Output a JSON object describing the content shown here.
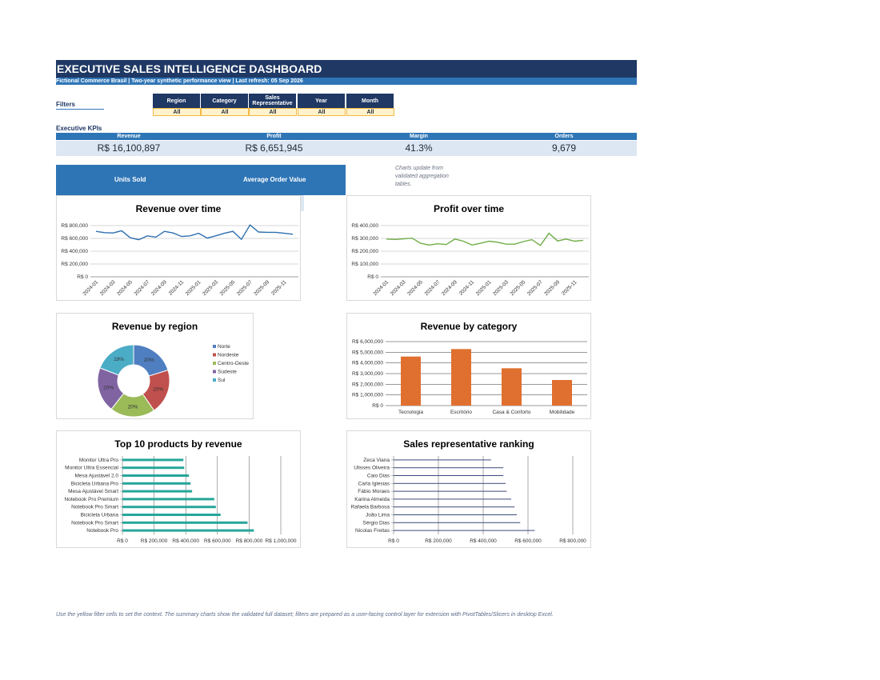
{
  "header": {
    "title": "EXECUTIVE SALES INTELLIGENCE DASHBOARD",
    "subtitle": "Fictional Commerce Brasil | Two-year synthetic performance view | Last refresh: 05 Sep 2026"
  },
  "filters": {
    "label": "Filters",
    "items": [
      {
        "label": "Region",
        "value": "All"
      },
      {
        "label": "Category",
        "value": "All"
      },
      {
        "label": "Sales Representative",
        "value": "All"
      },
      {
        "label": "Year",
        "value": "All"
      },
      {
        "label": "Month",
        "value": "All"
      }
    ]
  },
  "kpis": {
    "label": "Executive KPIs",
    "items": [
      {
        "label": "Revenue",
        "value": "R$ 16,100,897"
      },
      {
        "label": "Profit",
        "value": "R$ 6,651,945"
      },
      {
        "label": "Margin",
        "value": "41.3%"
      },
      {
        "label": "Orders",
        "value": "9,679"
      }
    ],
    "units_sold_label": "Units Sold",
    "avg_order_label": "Average Order Value"
  },
  "note": "Charts update from validated aggregation tables.",
  "footer": "Use the yellow filter cells to set the context. The summary charts show the validated full dataset; filters are prepared as a user-facing control layer for extension with PivotTables/Slicers in desktop Excel.",
  "colors": {
    "navy": "#1f3864",
    "blue": "#2e75b6",
    "line_blue": "#2e6fb0",
    "line_green": "#70ad47",
    "bar_orange": "#e0702f",
    "bar_teal": "#26a69a",
    "rep_navy": "#3b4a7a"
  },
  "chart_data": [
    {
      "type": "line",
      "title": "Revenue over time",
      "x": [
        "2024-01",
        "2024-02",
        "2024-03",
        "2024-04",
        "2024-05",
        "2024-06",
        "2024-07",
        "2024-08",
        "2024-09",
        "2024-10",
        "2024-11",
        "2024-12",
        "2025-01",
        "2025-02",
        "2025-03",
        "2025-04",
        "2025-05",
        "2025-06",
        "2025-07",
        "2025-08",
        "2025-09",
        "2025-10",
        "2025-11",
        "2025-12"
      ],
      "x_tick_labels": [
        "2024-01",
        "2024-03",
        "2024-05",
        "2024-07",
        "2024-09",
        "2024-11",
        "2025-01",
        "2025-03",
        "2025-05",
        "2025-07",
        "2025-09",
        "2025-11"
      ],
      "values": [
        710000,
        690000,
        685000,
        720000,
        610000,
        580000,
        640000,
        620000,
        710000,
        685000,
        630000,
        640000,
        680000,
        605000,
        640000,
        680000,
        710000,
        585000,
        810000,
        700000,
        695000,
        695000,
        680000,
        665000
      ],
      "ylim": [
        0,
        800000
      ],
      "y_ticks": [
        "R$ 0",
        "R$ 200,000",
        "R$ 400,000",
        "R$ 600,000",
        "R$ 800,000"
      ],
      "grid": true
    },
    {
      "type": "line",
      "title": "Profit over time",
      "x": [
        "2024-01",
        "2024-02",
        "2024-03",
        "2024-04",
        "2024-05",
        "2024-06",
        "2024-07",
        "2024-08",
        "2024-09",
        "2024-10",
        "2024-11",
        "2024-12",
        "2025-01",
        "2025-02",
        "2025-03",
        "2025-04",
        "2025-05",
        "2025-06",
        "2025-07",
        "2025-08",
        "2025-09",
        "2025-10",
        "2025-11",
        "2025-12"
      ],
      "x_tick_labels": [
        "2024-01",
        "2024-03",
        "2024-05",
        "2024-07",
        "2024-09",
        "2024-11",
        "2025-01",
        "2025-03",
        "2025-05",
        "2025-07",
        "2025-09",
        "2025-11"
      ],
      "values": [
        295000,
        292000,
        297000,
        302000,
        262000,
        248000,
        258000,
        252000,
        295000,
        278000,
        248000,
        262000,
        278000,
        270000,
        255000,
        255000,
        275000,
        290000,
        245000,
        340000,
        280000,
        295000,
        278000,
        285000
      ],
      "ylim": [
        0,
        400000
      ],
      "y_ticks": [
        "R$ 0",
        "R$ 100,000",
        "R$ 200,000",
        "R$ 300,000",
        "R$ 400,000"
      ],
      "grid": true
    },
    {
      "type": "pie",
      "title": "Revenue by region",
      "categories": [
        "Norte",
        "Nordeste",
        "Centro-Oeste",
        "Sudeste",
        "Sul"
      ],
      "values": [
        20,
        20,
        20,
        20,
        19
      ],
      "labels": [
        "20%",
        "20%",
        "20%",
        "20%",
        "19%"
      ],
      "colors": [
        "#4f7fc1",
        "#c0504d",
        "#9bbb59",
        "#8064a2",
        "#4bacc6"
      ],
      "legend": "right"
    },
    {
      "type": "bar",
      "title": "Revenue by category",
      "categories": [
        "Tecnologia",
        "Escritório",
        "Casa & Conforto",
        "Mobilidade"
      ],
      "values": [
        4600000,
        5300000,
        3500000,
        2400000
      ],
      "ylim": [
        0,
        6000000
      ],
      "y_ticks": [
        "R$ 0",
        "R$ 1,000,000",
        "R$ 2,000,000",
        "R$ 3,000,000",
        "R$ 4,000,000",
        "R$ 5,000,000",
        "R$ 6,000,000"
      ],
      "grid": true
    },
    {
      "type": "bar",
      "orientation": "horizontal",
      "title": "Top 10 products by revenue",
      "categories": [
        "Monitor Ultra Pro",
        "Monitor Ultra Essencial",
        "Mesa Ajustável 2.0",
        "Bicicleta Urbana Pro",
        "Mesa Ajustável Smart",
        "Notebook Pro Premium",
        "Notebook Pro Smart",
        "Bicicleta Urbana",
        "Notebook Pro Smart",
        "Notebook Pro"
      ],
      "values": [
        385000,
        390000,
        420000,
        430000,
        440000,
        580000,
        590000,
        620000,
        790000,
        830000
      ],
      "xlim": [
        0,
        1000000
      ],
      "x_ticks": [
        "R$ 0",
        "R$ 200,000",
        "R$ 400,000",
        "R$ 600,000",
        "R$ 800,000",
        "R$ 1,000,000"
      ],
      "grid": true
    },
    {
      "type": "bar",
      "orientation": "horizontal",
      "title": "Sales representative ranking",
      "categories": [
        "Zeca Viana",
        "Ulisses Oliveira",
        "Caio Dias",
        "Carla Iglesias",
        "Fábio Moraes",
        "Karina Almeida",
        "Rafaela Barbosa",
        "João Lima",
        "Sérgio Dias",
        "Nicolas Freitas"
      ],
      "values": [
        435000,
        490000,
        490000,
        500000,
        505000,
        525000,
        540000,
        550000,
        565000,
        630000
      ],
      "xlim": [
        0,
        800000
      ],
      "x_ticks": [
        "R$ 0",
        "R$ 200,000",
        "R$ 400,000",
        "R$ 600,000",
        "R$ 800,000"
      ],
      "grid": true
    }
  ]
}
